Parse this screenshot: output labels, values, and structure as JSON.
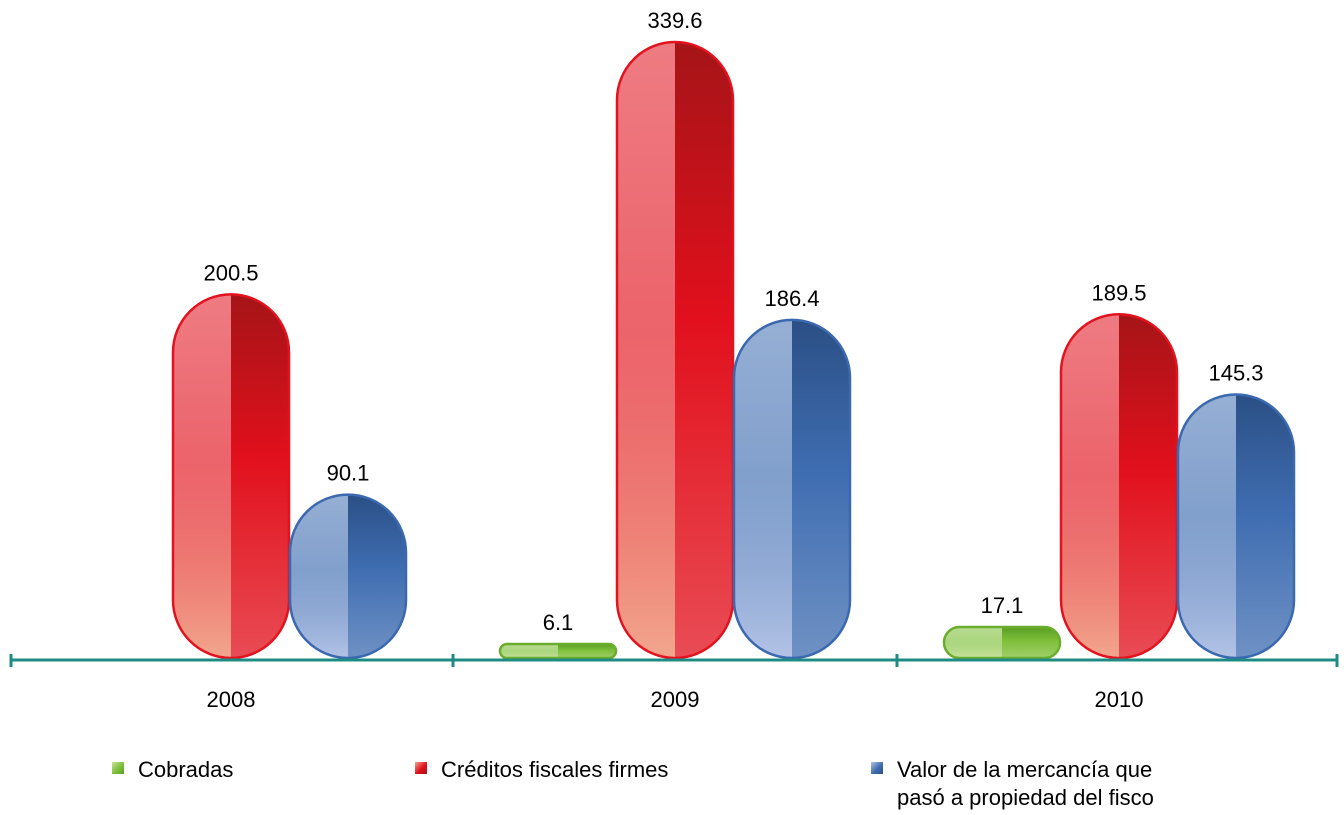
{
  "chart_data": {
    "type": "bar",
    "categories": [
      "2008",
      "2009",
      "2010"
    ],
    "series": [
      {
        "name": "Cobradas",
        "values": [
          null,
          6.1,
          17.1
        ]
      },
      {
        "name": "Créditos fiscales firmes",
        "values": [
          200.5,
          339.6,
          189.5
        ]
      },
      {
        "name": "Valor de la mercancía que pasó a propiedad del fisco",
        "values": [
          90.1,
          186.4,
          145.3
        ]
      }
    ],
    "value_labels": [
      [
        "",
        "6.1",
        "17.1"
      ],
      [
        "200.5",
        "339.6",
        "189.5"
      ],
      [
        "90.1",
        "186.4",
        "145.3"
      ]
    ],
    "ylim": [
      0,
      360
    ],
    "y_axis_visible": false,
    "grid": false,
    "legend_position": "bottom",
    "legend": [
      {
        "lines": [
          "Cobradas"
        ]
      },
      {
        "lines": [
          "Créditos fiscales firmes"
        ]
      },
      {
        "lines": [
          "Valor de la mercancía que",
          "pasó a propiedad del fisco"
        ]
      }
    ],
    "colors": {
      "Cobradas": {
        "light": "#c9e3a0",
        "mid": "#7fbf3a",
        "dark": "#5a9e22",
        "stroke": "#6aad2c"
      },
      "Créditos fiscales firmes": {
        "light": "#f2a68d",
        "mid": "#e1101c",
        "dark": "#a51418",
        "stroke": "#e2131f"
      },
      "Valor de la mercancía que pasó a propiedad del fisco": {
        "light": "#b3c3e6",
        "mid": "#3f6db1",
        "dark": "#2b4f85",
        "stroke": "#3b69b0"
      },
      "axis": "#1e8c84"
    }
  }
}
